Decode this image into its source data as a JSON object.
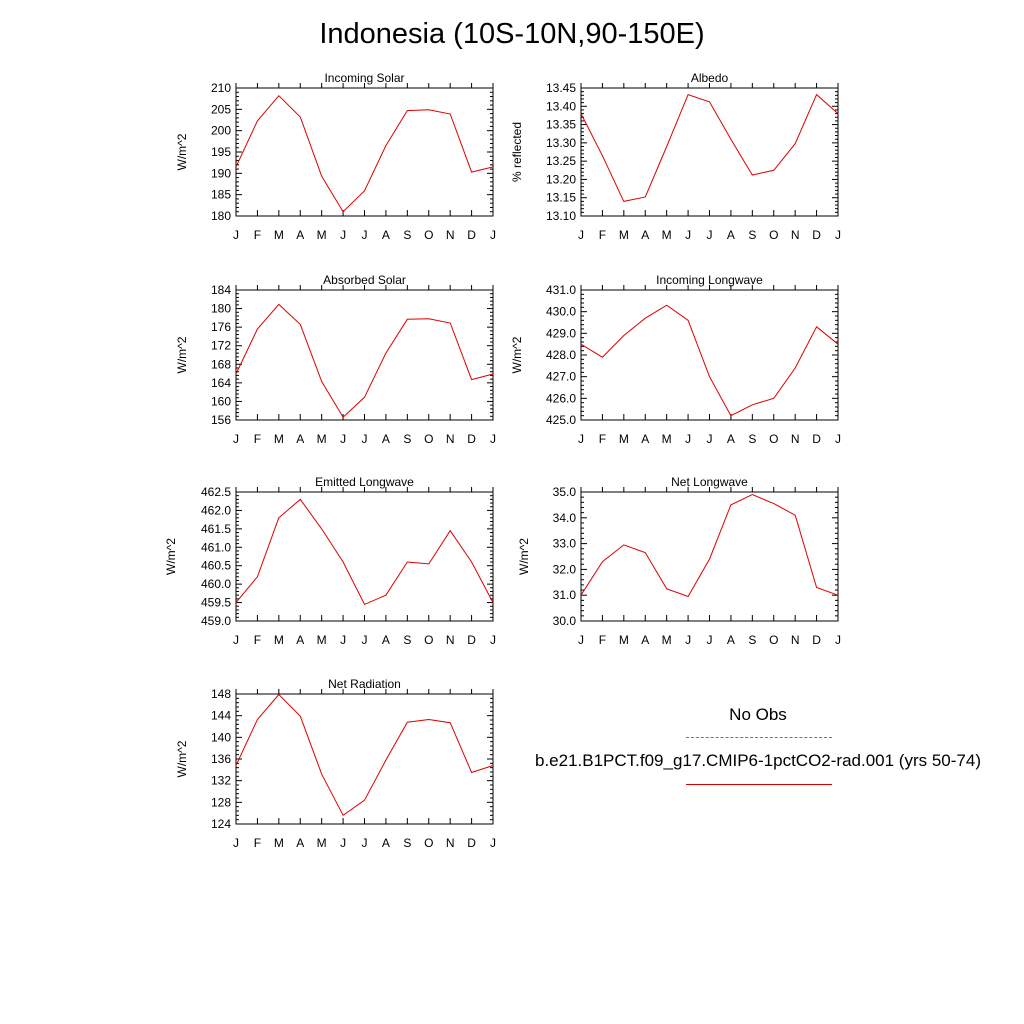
{
  "page": {
    "title": "Indonesia (10S-10N,90-150E)"
  },
  "legend": {
    "obs_label": "No Obs",
    "obs_color": "#6666dd",
    "model_label": "b.e21.B1PCT.f09_g17.CMIP6-1pctCO2-rad.001 (yrs 50-74)",
    "model_color": "#dd0000"
  },
  "chart_data": [
    {
      "type": "line",
      "title": "Incoming Solar",
      "ylabel": "W/m^2",
      "categories": [
        "J",
        "F",
        "M",
        "A",
        "M",
        "J",
        "J",
        "A",
        "S",
        "O",
        "N",
        "D",
        "J"
      ],
      "ylim": [
        180,
        210
      ],
      "yticks": [
        "180",
        "185",
        "190",
        "195",
        "200",
        "205",
        "210"
      ],
      "series": [
        {
          "values": [
            191.5,
            202.3,
            208.2,
            203.2,
            189.3,
            181.0,
            185.9,
            196.5,
            204.7,
            204.9,
            203.9,
            190.3,
            191.5
          ]
        }
      ]
    },
    {
      "type": "line",
      "title": "Albedo",
      "ylabel": "% reflected",
      "categories": [
        "J",
        "F",
        "M",
        "A",
        "M",
        "J",
        "J",
        "A",
        "S",
        "O",
        "N",
        "D",
        "J"
      ],
      "ylim": [
        13.1,
        13.45
      ],
      "yticks": [
        "13.10",
        "13.15",
        "13.20",
        "13.25",
        "13.30",
        "13.35",
        "13.40",
        "13.45"
      ],
      "series": [
        {
          "values": [
            13.38,
            13.265,
            13.14,
            13.152,
            13.29,
            13.432,
            13.412,
            13.31,
            13.212,
            13.225,
            13.298,
            13.432,
            13.38
          ]
        }
      ]
    },
    {
      "type": "line",
      "title": "Absorbed Solar",
      "ylabel": "W/m^2",
      "categories": [
        "J",
        "F",
        "M",
        "A",
        "M",
        "J",
        "J",
        "A",
        "S",
        "O",
        "N",
        "D",
        "J"
      ],
      "ylim": [
        156,
        184
      ],
      "yticks": [
        "156",
        "160",
        "164",
        "168",
        "172",
        "176",
        "180",
        "184"
      ],
      "series": [
        {
          "values": [
            165.9,
            175.6,
            180.9,
            176.6,
            164.3,
            156.6,
            160.9,
            170.4,
            177.7,
            177.8,
            176.9,
            164.7,
            165.9
          ]
        }
      ]
    },
    {
      "type": "line",
      "title": "Incoming Longwave",
      "ylabel": "W/m^2",
      "categories": [
        "J",
        "F",
        "M",
        "A",
        "M",
        "J",
        "J",
        "A",
        "S",
        "O",
        "N",
        "D",
        "J"
      ],
      "ylim": [
        425.0,
        431.0
      ],
      "yticks": [
        "425.0",
        "426.0",
        "427.0",
        "428.0",
        "429.0",
        "430.0",
        "431.0"
      ],
      "series": [
        {
          "values": [
            428.5,
            427.9,
            428.9,
            429.7,
            430.3,
            429.6,
            427.0,
            425.2,
            425.7,
            426.0,
            427.4,
            429.3,
            428.5
          ]
        }
      ]
    },
    {
      "type": "line",
      "title": "Emitted Longwave",
      "ylabel": "W/m^2",
      "categories": [
        "J",
        "F",
        "M",
        "A",
        "M",
        "J",
        "J",
        "A",
        "S",
        "O",
        "N",
        "D",
        "J"
      ],
      "ylim": [
        459.0,
        462.5
      ],
      "yticks": [
        "459.0",
        "459.5",
        "460.0",
        "460.5",
        "461.0",
        "461.5",
        "462.0",
        "462.5"
      ],
      "series": [
        {
          "values": [
            459.5,
            460.2,
            461.8,
            462.3,
            461.5,
            460.6,
            459.45,
            459.7,
            460.6,
            460.55,
            461.45,
            460.6,
            459.5
          ]
        }
      ]
    },
    {
      "type": "line",
      "title": "Net Longwave",
      "ylabel": "W/m^2",
      "categories": [
        "J",
        "F",
        "M",
        "A",
        "M",
        "J",
        "J",
        "A",
        "S",
        "O",
        "N",
        "D",
        "J"
      ],
      "ylim": [
        30.0,
        35.0
      ],
      "yticks": [
        "30.0",
        "31.0",
        "32.0",
        "33.0",
        "34.0",
        "35.0"
      ],
      "series": [
        {
          "values": [
            31.0,
            32.3,
            32.95,
            32.65,
            31.25,
            30.95,
            32.4,
            34.5,
            34.9,
            34.55,
            34.1,
            31.3,
            31.0
          ]
        }
      ]
    },
    {
      "type": "line",
      "title": "Net Radiation",
      "ylabel": "W/m^2",
      "categories": [
        "J",
        "F",
        "M",
        "A",
        "M",
        "J",
        "J",
        "A",
        "S",
        "O",
        "N",
        "D",
        "J"
      ],
      "ylim": [
        124,
        148
      ],
      "yticks": [
        "124",
        "128",
        "132",
        "136",
        "140",
        "144",
        "148"
      ],
      "series": [
        {
          "values": [
            134.8,
            143.3,
            147.9,
            143.9,
            133.2,
            125.6,
            128.4,
            135.8,
            142.8,
            143.3,
            142.7,
            133.5,
            134.8
          ]
        }
      ]
    }
  ]
}
